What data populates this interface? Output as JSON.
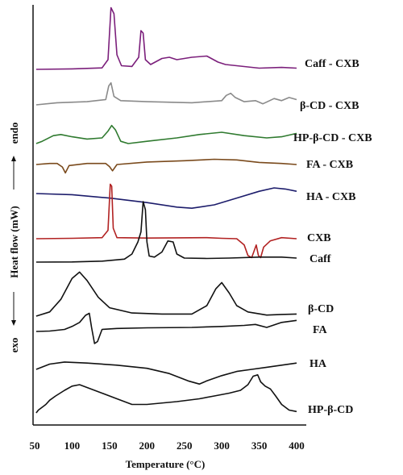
{
  "chart_data": {
    "type": "line",
    "title": "",
    "xlabel": "Temperature (°C)",
    "ylabel": "Heat flow (mW)",
    "ylabel_up": "endo",
    "ylabel_down": "exo",
    "xlim": [
      50,
      400
    ],
    "x_ticks": [
      "50",
      "100",
      "150",
      "200",
      "250",
      "300",
      "350",
      "400"
    ],
    "grid": false,
    "legend": "none; curves labelled directly at right end",
    "series": [
      {
        "name": "Caff - CXB",
        "color": "#7b1f7b",
        "points": [
          [
            52,
            0
          ],
          [
            100,
            0.02
          ],
          [
            140,
            0.06
          ],
          [
            148,
            0.4
          ],
          [
            152,
            2.55
          ],
          [
            156,
            2.3
          ],
          [
            160,
            0.6
          ],
          [
            166,
            0.15
          ],
          [
            180,
            0.12
          ],
          [
            189,
            0.5
          ],
          [
            192,
            1.6
          ],
          [
            195,
            1.5
          ],
          [
            198,
            0.4
          ],
          [
            205,
            0.2
          ],
          [
            220,
            0.45
          ],
          [
            230,
            0.5
          ],
          [
            240,
            0.4
          ],
          [
            260,
            0.5
          ],
          [
            280,
            0.55
          ],
          [
            295,
            0.3
          ],
          [
            305,
            0.2
          ],
          [
            320,
            0.15
          ],
          [
            350,
            0.05
          ],
          [
            380,
            0.08
          ],
          [
            400,
            0.05
          ]
        ]
      },
      {
        "name": "β-CD - CXB",
        "color": "#8a8a8a",
        "points": [
          [
            52,
            0
          ],
          [
            80,
            0.1
          ],
          [
            120,
            0.15
          ],
          [
            145,
            0.25
          ],
          [
            149,
            0.9
          ],
          [
            152,
            1.05
          ],
          [
            156,
            0.4
          ],
          [
            165,
            0.2
          ],
          [
            200,
            0.15
          ],
          [
            260,
            0.1
          ],
          [
            300,
            0.2
          ],
          [
            306,
            0.45
          ],
          [
            312,
            0.55
          ],
          [
            318,
            0.35
          ],
          [
            330,
            0.15
          ],
          [
            345,
            0.2
          ],
          [
            355,
            0.05
          ],
          [
            370,
            0.3
          ],
          [
            380,
            0.2
          ],
          [
            390,
            0.35
          ],
          [
            400,
            0.25
          ]
        ]
      },
      {
        "name": "HP-β-CD - CXB",
        "color": "#2f7a2f",
        "points": [
          [
            52,
            0
          ],
          [
            60,
            0.1
          ],
          [
            75,
            0.35
          ],
          [
            85,
            0.4
          ],
          [
            100,
            0.3
          ],
          [
            120,
            0.2
          ],
          [
            140,
            0.25
          ],
          [
            148,
            0.55
          ],
          [
            153,
            0.8
          ],
          [
            158,
            0.6
          ],
          [
            165,
            0.1
          ],
          [
            175,
            0
          ],
          [
            200,
            0.1
          ],
          [
            240,
            0.25
          ],
          [
            270,
            0.4
          ],
          [
            300,
            0.5
          ],
          [
            330,
            0.35
          ],
          [
            360,
            0.25
          ],
          [
            380,
            0.3
          ],
          [
            400,
            0.45
          ]
        ]
      },
      {
        "name": "FA - CXB",
        "color": "#7a4a1c",
        "points": [
          [
            52,
            0
          ],
          [
            70,
            0.05
          ],
          [
            80,
            0.05
          ],
          [
            87,
            -0.12
          ],
          [
            91,
            -0.4
          ],
          [
            96,
            -0.05
          ],
          [
            120,
            0.05
          ],
          [
            145,
            0.05
          ],
          [
            150,
            -0.1
          ],
          [
            154,
            -0.3
          ],
          [
            160,
            0
          ],
          [
            200,
            0.12
          ],
          [
            250,
            0.18
          ],
          [
            290,
            0.25
          ],
          [
            320,
            0.22
          ],
          [
            350,
            0.1
          ],
          [
            380,
            0.05
          ],
          [
            400,
            0
          ]
        ]
      },
      {
        "name": "HA - CXB",
        "color": "#1c1c6b",
        "points": [
          [
            52,
            0
          ],
          [
            100,
            -0.05
          ],
          [
            150,
            -0.2
          ],
          [
            200,
            -0.4
          ],
          [
            240,
            -0.6
          ],
          [
            260,
            -0.65
          ],
          [
            290,
            -0.5
          ],
          [
            320,
            -0.2
          ],
          [
            350,
            0.1
          ],
          [
            370,
            0.25
          ],
          [
            385,
            0.2
          ],
          [
            400,
            0.1
          ]
        ]
      },
      {
        "name": "CXB",
        "color": "#b22222",
        "points": [
          [
            52,
            0
          ],
          [
            100,
            0.02
          ],
          [
            140,
            0.05
          ],
          [
            148,
            0.4
          ],
          [
            151,
            2.6
          ],
          [
            153,
            2.5
          ],
          [
            155,
            0.5
          ],
          [
            160,
            0.05
          ],
          [
            200,
            0.03
          ],
          [
            280,
            0.05
          ],
          [
            300,
            0.02
          ],
          [
            320,
            0
          ],
          [
            330,
            -0.3
          ],
          [
            335,
            -0.8
          ],
          [
            340,
            -0.9
          ],
          [
            343,
            -0.6
          ],
          [
            346,
            -0.3
          ],
          [
            349,
            -0.8
          ],
          [
            352,
            -0.9
          ],
          [
            356,
            -0.4
          ],
          [
            365,
            -0.1
          ],
          [
            380,
            0.05
          ],
          [
            400,
            0
          ]
        ]
      },
      {
        "name": "Caff",
        "color": "#111111",
        "points": [
          [
            52,
            0
          ],
          [
            100,
            0.01
          ],
          [
            140,
            0.05
          ],
          [
            170,
            0.15
          ],
          [
            180,
            0.4
          ],
          [
            188,
            1
          ],
          [
            192,
            1.5
          ],
          [
            195,
            3
          ],
          [
            198,
            2.6
          ],
          [
            200,
            1
          ],
          [
            203,
            0.3
          ],
          [
            210,
            0.25
          ],
          [
            220,
            0.5
          ],
          [
            228,
            1.05
          ],
          [
            235,
            1
          ],
          [
            240,
            0.4
          ],
          [
            250,
            0.2
          ],
          [
            280,
            0.18
          ],
          [
            310,
            0.2
          ],
          [
            350,
            0.25
          ],
          [
            380,
            0.25
          ],
          [
            400,
            0.2
          ]
        ]
      },
      {
        "name": "β-CD",
        "color": "#111111",
        "points": [
          [
            52,
            0
          ],
          [
            70,
            0.2
          ],
          [
            85,
            0.8
          ],
          [
            100,
            1.8
          ],
          [
            110,
            2.1
          ],
          [
            120,
            1.7
          ],
          [
            135,
            0.9
          ],
          [
            150,
            0.4
          ],
          [
            180,
            0.15
          ],
          [
            220,
            0.1
          ],
          [
            260,
            0.1
          ],
          [
            280,
            0.5
          ],
          [
            292,
            1.3
          ],
          [
            300,
            1.6
          ],
          [
            310,
            1.1
          ],
          [
            320,
            0.5
          ],
          [
            335,
            0.2
          ],
          [
            360,
            0.05
          ],
          [
            380,
            0.08
          ],
          [
            400,
            0.1
          ]
        ]
      },
      {
        "name": "FA",
        "color": "#111111",
        "points": [
          [
            52,
            0
          ],
          [
            70,
            0.02
          ],
          [
            90,
            0.1
          ],
          [
            100,
            0.25
          ],
          [
            110,
            0.45
          ],
          [
            118,
            0.8
          ],
          [
            123,
            0.9
          ],
          [
            126,
            0.2
          ],
          [
            130,
            -0.6
          ],
          [
            134,
            -0.5
          ],
          [
            140,
            0.1
          ],
          [
            160,
            0.15
          ],
          [
            200,
            0.18
          ],
          [
            260,
            0.2
          ],
          [
            300,
            0.25
          ],
          [
            330,
            0.3
          ],
          [
            345,
            0.35
          ],
          [
            360,
            0.2
          ],
          [
            380,
            0.45
          ],
          [
            400,
            0.55
          ]
        ]
      },
      {
        "name": "HA",
        "color": "#111111",
        "points": [
          [
            52,
            0
          ],
          [
            70,
            0.25
          ],
          [
            90,
            0.35
          ],
          [
            120,
            0.3
          ],
          [
            160,
            0.2
          ],
          [
            200,
            0.05
          ],
          [
            230,
            -0.2
          ],
          [
            255,
            -0.55
          ],
          [
            270,
            -0.7
          ],
          [
            280,
            -0.55
          ],
          [
            300,
            -0.3
          ],
          [
            320,
            -0.1
          ],
          [
            340,
            0
          ],
          [
            360,
            0.1
          ],
          [
            380,
            0.2
          ],
          [
            400,
            0.3
          ]
        ]
      },
      {
        "name": "HP-β-CD",
        "color": "#111111",
        "points": [
          [
            52,
            0
          ],
          [
            55,
            0.1
          ],
          [
            60,
            0.2
          ],
          [
            65,
            0.3
          ],
          [
            70,
            0.45
          ],
          [
            78,
            0.6
          ],
          [
            90,
            0.8
          ],
          [
            100,
            0.95
          ],
          [
            110,
            1
          ],
          [
            120,
            0.9
          ],
          [
            140,
            0.7
          ],
          [
            160,
            0.5
          ],
          [
            180,
            0.3
          ],
          [
            200,
            0.3
          ],
          [
            240,
            0.4
          ],
          [
            270,
            0.5
          ],
          [
            290,
            0.6
          ],
          [
            310,
            0.7
          ],
          [
            325,
            0.8
          ],
          [
            335,
            1
          ],
          [
            342,
            1.3
          ],
          [
            348,
            1.35
          ],
          [
            352,
            1.1
          ],
          [
            358,
            0.95
          ],
          [
            365,
            0.85
          ],
          [
            372,
            0.6
          ],
          [
            380,
            0.3
          ],
          [
            390,
            0.1
          ],
          [
            400,
            0.05
          ]
        ]
      }
    ]
  }
}
